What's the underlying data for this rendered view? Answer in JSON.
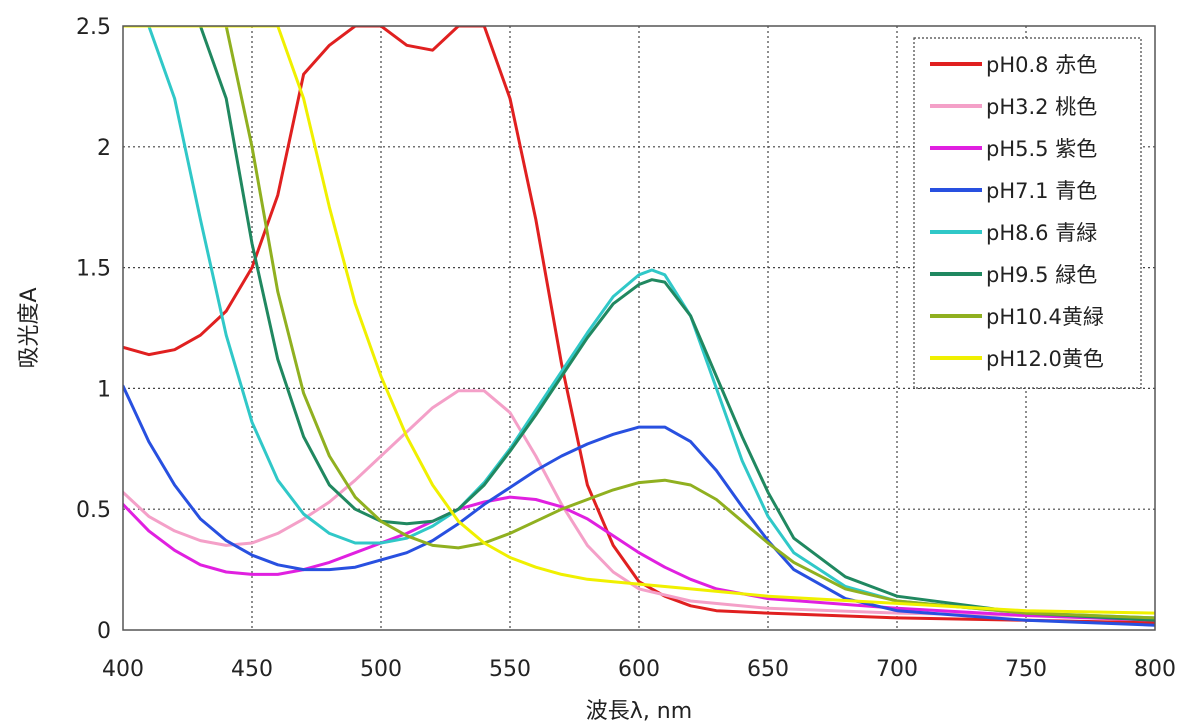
{
  "chart_data": {
    "type": "line",
    "title": "",
    "xlabel": "波長λ, nm",
    "ylabel": "吸光度A",
    "xlim": [
      400,
      800
    ],
    "ylim": [
      0,
      2.5
    ],
    "xticks": [
      400,
      450,
      500,
      550,
      600,
      650,
      700,
      750,
      800
    ],
    "yticks": [
      0,
      0.5,
      1,
      1.5,
      2,
      2.5
    ],
    "xtick_labels": [
      "400",
      "450",
      "500",
      "550",
      "600",
      "650",
      "700",
      "750",
      "800"
    ],
    "ytick_labels": [
      "0",
      "0.5",
      "1",
      "1.5",
      "2",
      "2.5"
    ],
    "grid": true,
    "legend_position": "top-right",
    "series": [
      {
        "name": "pH0.8 赤色",
        "color": "#e02020",
        "x": [
          400,
          410,
          420,
          430,
          440,
          450,
          460,
          470,
          480,
          490,
          500,
          510,
          520,
          530,
          540,
          550,
          560,
          570,
          580,
          590,
          600,
          610,
          620,
          630,
          650,
          700,
          750,
          800
        ],
        "y": [
          1.17,
          1.14,
          1.16,
          1.22,
          1.32,
          1.5,
          1.8,
          2.3,
          2.42,
          2.5,
          2.5,
          2.42,
          2.4,
          2.5,
          2.5,
          2.2,
          1.7,
          1.1,
          0.6,
          0.35,
          0.2,
          0.14,
          0.1,
          0.08,
          0.07,
          0.05,
          0.04,
          0.03
        ]
      },
      {
        "name": "pH3.2 桃色",
        "color": "#f4a0c8",
        "x": [
          400,
          410,
          420,
          430,
          440,
          450,
          460,
          470,
          480,
          490,
          500,
          510,
          520,
          530,
          540,
          550,
          560,
          570,
          580,
          590,
          600,
          620,
          650,
          700,
          750,
          800
        ],
        "y": [
          0.57,
          0.47,
          0.41,
          0.37,
          0.35,
          0.36,
          0.4,
          0.46,
          0.53,
          0.62,
          0.72,
          0.82,
          0.92,
          0.99,
          0.99,
          0.9,
          0.72,
          0.52,
          0.35,
          0.24,
          0.17,
          0.12,
          0.09,
          0.07,
          0.06,
          0.05
        ]
      },
      {
        "name": "pH5.5 紫色",
        "color": "#e020e0",
        "x": [
          400,
          410,
          420,
          430,
          440,
          450,
          460,
          470,
          480,
          490,
          500,
          510,
          520,
          530,
          540,
          550,
          560,
          570,
          580,
          590,
          600,
          610,
          620,
          630,
          650,
          700,
          750,
          800
        ],
        "y": [
          0.52,
          0.41,
          0.33,
          0.27,
          0.24,
          0.23,
          0.23,
          0.25,
          0.28,
          0.32,
          0.36,
          0.4,
          0.45,
          0.5,
          0.53,
          0.55,
          0.54,
          0.51,
          0.46,
          0.39,
          0.32,
          0.26,
          0.21,
          0.17,
          0.13,
          0.09,
          0.06,
          0.04
        ]
      },
      {
        "name": "pH7.1 青色",
        "color": "#2850e0",
        "x": [
          400,
          410,
          420,
          430,
          440,
          450,
          460,
          470,
          480,
          490,
          500,
          510,
          520,
          530,
          540,
          550,
          560,
          570,
          580,
          590,
          600,
          610,
          620,
          630,
          640,
          650,
          660,
          680,
          700,
          750,
          800
        ],
        "y": [
          1.01,
          0.78,
          0.6,
          0.46,
          0.37,
          0.31,
          0.27,
          0.25,
          0.25,
          0.26,
          0.29,
          0.32,
          0.37,
          0.44,
          0.52,
          0.59,
          0.66,
          0.72,
          0.77,
          0.81,
          0.84,
          0.84,
          0.78,
          0.66,
          0.51,
          0.37,
          0.25,
          0.13,
          0.08,
          0.04,
          0.02
        ]
      },
      {
        "name": "pH8.6 青緑",
        "color": "#30c8c8",
        "x": [
          400,
          410,
          420,
          430,
          440,
          450,
          460,
          470,
          480,
          490,
          500,
          510,
          520,
          530,
          540,
          550,
          560,
          570,
          580,
          590,
          600,
          605,
          610,
          620,
          630,
          640,
          650,
          660,
          680,
          700,
          750,
          800
        ],
        "y": [
          2.5,
          2.5,
          2.2,
          1.7,
          1.22,
          0.86,
          0.62,
          0.48,
          0.4,
          0.36,
          0.36,
          0.38,
          0.43,
          0.5,
          0.61,
          0.75,
          0.91,
          1.07,
          1.23,
          1.38,
          1.47,
          1.49,
          1.47,
          1.3,
          1.0,
          0.7,
          0.47,
          0.32,
          0.18,
          0.12,
          0.07,
          0.05
        ]
      },
      {
        "name": "pH9.5 緑色",
        "color": "#208860",
        "x": [
          400,
          420,
          430,
          440,
          450,
          460,
          470,
          480,
          490,
          500,
          510,
          520,
          530,
          540,
          550,
          560,
          570,
          580,
          590,
          600,
          605,
          610,
          620,
          630,
          640,
          650,
          660,
          680,
          700,
          750,
          800
        ],
        "y": [
          2.5,
          2.5,
          2.5,
          2.2,
          1.6,
          1.12,
          0.8,
          0.6,
          0.5,
          0.45,
          0.44,
          0.45,
          0.5,
          0.6,
          0.74,
          0.89,
          1.05,
          1.21,
          1.35,
          1.43,
          1.45,
          1.44,
          1.3,
          1.05,
          0.8,
          0.57,
          0.38,
          0.22,
          0.14,
          0.07,
          0.04
        ]
      },
      {
        "name": "pH10.4黄緑",
        "color": "#90b020",
        "x": [
          400,
          420,
          430,
          440,
          450,
          460,
          470,
          480,
          490,
          500,
          510,
          520,
          530,
          540,
          550,
          560,
          570,
          580,
          590,
          600,
          610,
          620,
          630,
          640,
          650,
          660,
          680,
          700,
          750,
          800
        ],
        "y": [
          2.5,
          2.5,
          2.5,
          2.5,
          2.0,
          1.4,
          0.98,
          0.72,
          0.55,
          0.45,
          0.39,
          0.35,
          0.34,
          0.36,
          0.4,
          0.45,
          0.5,
          0.54,
          0.58,
          0.61,
          0.62,
          0.6,
          0.54,
          0.45,
          0.36,
          0.28,
          0.17,
          0.12,
          0.07,
          0.05
        ]
      },
      {
        "name": "pH12.0黄色",
        "color": "#f0f000",
        "x": [
          400,
          450,
          460,
          470,
          480,
          490,
          500,
          510,
          520,
          530,
          540,
          550,
          560,
          570,
          580,
          590,
          600,
          620,
          650,
          700,
          750,
          800
        ],
        "y": [
          2.5,
          2.5,
          2.5,
          2.2,
          1.75,
          1.35,
          1.05,
          0.8,
          0.6,
          0.45,
          0.36,
          0.3,
          0.26,
          0.23,
          0.21,
          0.2,
          0.19,
          0.17,
          0.14,
          0.11,
          0.08,
          0.07
        ]
      }
    ]
  }
}
